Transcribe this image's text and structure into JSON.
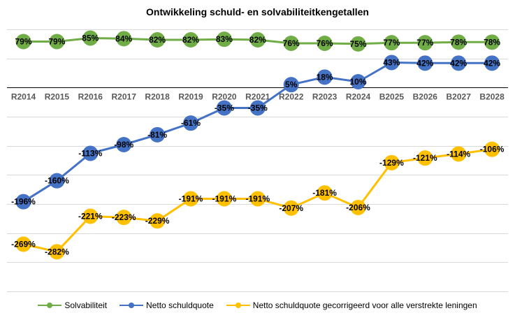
{
  "chart_data": {
    "type": "line",
    "title": "Ontwikkeling schuld- en solvabiliteitkengetallen",
    "categories": [
      "R2014",
      "R2015",
      "R2016",
      "R2017",
      "R2018",
      "R2019",
      "R2020",
      "R2021",
      "R2022",
      "R2023",
      "R2024",
      "B2025",
      "B2026",
      "B2027",
      "B2028"
    ],
    "ylim": [
      -350,
      100
    ],
    "grid": true,
    "legend_position": "bottom",
    "series": [
      {
        "name": "Solvabiliteit",
        "color": "#70AD47",
        "values": [
          79,
          79,
          85,
          84,
          82,
          82,
          83,
          82,
          76,
          76,
          75,
          77,
          77,
          78,
          78
        ],
        "labels": [
          "79%",
          "79%",
          "85%",
          "84%",
          "82%",
          "82%",
          "83%",
          "82%",
          "76%",
          "76%",
          "75%",
          "77%",
          "77%",
          "78%",
          "78%"
        ]
      },
      {
        "name": "Netto schuldquote",
        "color": "#4472C4",
        "values": [
          -196,
          -160,
          -113,
          -98,
          -81,
          -61,
          -35,
          -35,
          5,
          18,
          10,
          43,
          42,
          42,
          42
        ],
        "labels": [
          "-196%",
          "-160%",
          "-113%",
          "-98%",
          "-81%",
          "-61%",
          "-35%",
          "-35%",
          "5%",
          "18%",
          "10%",
          "43%",
          "42%",
          "42%",
          "42%"
        ]
      },
      {
        "name": "Netto schuldquote gecorrigeerd voor alle verstrekte leningen",
        "color": "#FFC000",
        "values": [
          -269,
          -282,
          -221,
          -223,
          -229,
          -191,
          -191,
          -191,
          -207,
          -181,
          -206,
          -129,
          -121,
          -114,
          -106
        ],
        "labels": [
          "-269%",
          "-282%",
          "-221%",
          "-223%",
          "-229%",
          "-191%",
          "-191%",
          "-191%",
          "-207%",
          "-181%",
          "-206%",
          "-129%",
          "-121%",
          "-114%",
          "-106%"
        ]
      }
    ]
  }
}
